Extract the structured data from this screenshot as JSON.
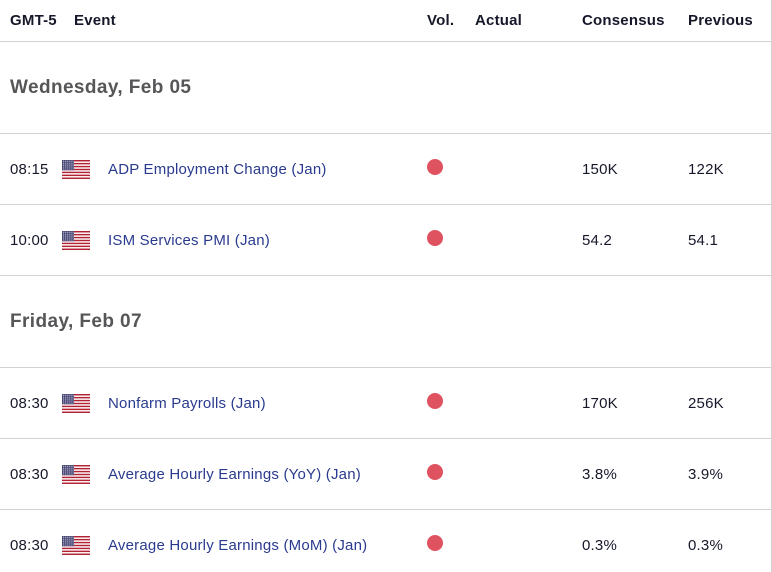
{
  "colors": {
    "event_link": "#2a3b8f",
    "volatility_high": "#df5260",
    "divider": "#d2d2d2",
    "text_dark": "#16182a",
    "section_title": "#565659"
  },
  "table": {
    "columns": [
      "GMT-5",
      "Event",
      "Vol.",
      "Actual",
      "Consensus",
      "Previous"
    ],
    "sections": [
      {
        "title": "Wednesday, Feb 05",
        "rows": [
          {
            "time": "08:15",
            "country": "United States",
            "event": "ADP Employment Change (Jan)",
            "volatility": "high",
            "actual": "",
            "consensus": "150K",
            "previous": "122K"
          },
          {
            "time": "10:00",
            "country": "United States",
            "event": "ISM Services PMI (Jan)",
            "volatility": "high",
            "actual": "",
            "consensus": "54.2",
            "previous": "54.1"
          }
        ]
      },
      {
        "title": "Friday, Feb 07",
        "rows": [
          {
            "time": "08:30",
            "country": "United States",
            "event": "Nonfarm Payrolls (Jan)",
            "volatility": "high",
            "actual": "",
            "consensus": "170K",
            "previous": "256K"
          },
          {
            "time": "08:30",
            "country": "United States",
            "event": "Average Hourly Earnings (YoY) (Jan)",
            "volatility": "high",
            "actual": "",
            "consensus": "3.8%",
            "previous": "3.9%"
          },
          {
            "time": "08:30",
            "country": "United States",
            "event": "Average Hourly Earnings (MoM) (Jan)",
            "volatility": "high",
            "actual": "",
            "consensus": "0.3%",
            "previous": "0.3%"
          }
        ]
      }
    ]
  }
}
